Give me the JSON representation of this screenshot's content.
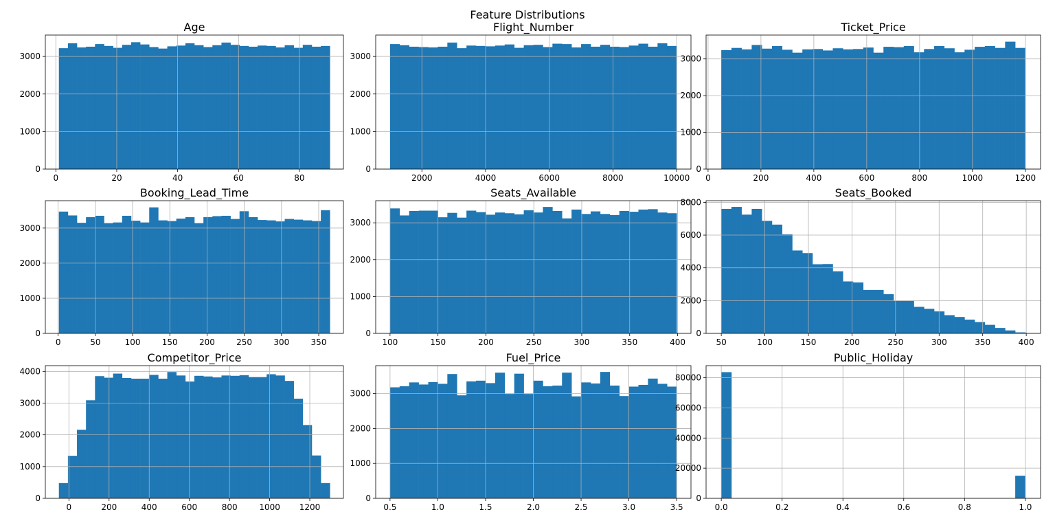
{
  "figure": {
    "title": "Feature Distributions"
  },
  "colors": {
    "bar": "#1f77b4",
    "grid": "#b0b0b0",
    "axis": "#000000"
  },
  "chart_data": [
    {
      "type": "bar",
      "title": "Age",
      "grid": true,
      "bin_range": [
        1,
        90
      ],
      "xlim": [
        -3.45,
        94.45
      ],
      "ylim": [
        0,
        3570
      ],
      "xticks": [
        0,
        20,
        40,
        60,
        80
      ],
      "xtick_labels": [
        "0",
        "20",
        "40",
        "60",
        "80"
      ],
      "yticks": [
        0,
        1000,
        2000,
        3000
      ],
      "ytick_labels": [
        "0",
        "1000",
        "2000",
        "3000"
      ],
      "values": [
        3220,
        3350,
        3240,
        3260,
        3330,
        3280,
        3230,
        3310,
        3380,
        3320,
        3250,
        3210,
        3270,
        3290,
        3350,
        3300,
        3250,
        3300,
        3370,
        3310,
        3280,
        3260,
        3290,
        3280,
        3240,
        3300,
        3230,
        3310,
        3260,
        3280
      ]
    },
    {
      "type": "bar",
      "title": "Flight_Number",
      "grid": true,
      "bin_range": [
        1000,
        9999
      ],
      "xlim": [
        550,
        10449
      ],
      "ylim": [
        0,
        3570
      ],
      "xticks": [
        2000,
        4000,
        6000,
        8000,
        10000
      ],
      "xtick_labels": [
        "2000",
        "4000",
        "6000",
        "8000",
        "10000"
      ],
      "yticks": [
        0,
        1000,
        2000,
        3000
      ],
      "ytick_labels": [
        "0",
        "1000",
        "2000",
        "3000"
      ],
      "values": [
        3330,
        3300,
        3260,
        3250,
        3240,
        3260,
        3370,
        3220,
        3290,
        3280,
        3270,
        3290,
        3320,
        3230,
        3300,
        3310,
        3250,
        3340,
        3330,
        3240,
        3330,
        3260,
        3310,
        3260,
        3250,
        3290,
        3340,
        3260,
        3350,
        3280
      ]
    },
    {
      "type": "bar",
      "title": "Ticket_Price",
      "grid": true,
      "bin_range": [
        50,
        1200
      ],
      "xlim": [
        -7.5,
        1257.5
      ],
      "ylim": [
        0,
        3650
      ],
      "xticks": [
        0,
        200,
        400,
        600,
        800,
        1000,
        1200
      ],
      "xtick_labels": [
        "0",
        "200",
        "400",
        "600",
        "800",
        "1000",
        "1200"
      ],
      "yticks": [
        0,
        1000,
        2000,
        3000
      ],
      "ytick_labels": [
        "0",
        "1000",
        "2000",
        "3000"
      ],
      "values": [
        3240,
        3300,
        3260,
        3380,
        3280,
        3350,
        3250,
        3170,
        3260,
        3270,
        3230,
        3290,
        3260,
        3270,
        3310,
        3170,
        3330,
        3320,
        3350,
        3180,
        3270,
        3350,
        3290,
        3180,
        3250,
        3330,
        3350,
        3300,
        3470,
        3300
      ]
    },
    {
      "type": "bar",
      "title": "Booking_Lead_Time",
      "grid": true,
      "bin_range": [
        1,
        365
      ],
      "xlim": [
        -17.2,
        383.2
      ],
      "ylim": [
        0,
        3780
      ],
      "xticks": [
        0,
        50,
        100,
        150,
        200,
        250,
        300,
        350
      ],
      "xtick_labels": [
        "0",
        "50",
        "100",
        "150",
        "200",
        "250",
        "300",
        "350"
      ],
      "yticks": [
        0,
        1000,
        2000,
        3000
      ],
      "ytick_labels": [
        "0",
        "1000",
        "2000",
        "3000"
      ],
      "values": [
        3470,
        3360,
        3150,
        3310,
        3350,
        3140,
        3160,
        3350,
        3210,
        3160,
        3590,
        3220,
        3200,
        3270,
        3310,
        3140,
        3310,
        3340,
        3350,
        3260,
        3480,
        3310,
        3230,
        3220,
        3190,
        3260,
        3240,
        3220,
        3200,
        3510
      ]
    },
    {
      "type": "bar",
      "title": "Seats_Available",
      "grid": true,
      "bin_range": [
        100,
        399
      ],
      "xlim": [
        85.05,
        413.95
      ],
      "ylim": [
        0,
        3600
      ],
      "xticks": [
        100,
        150,
        200,
        250,
        300,
        350,
        400
      ],
      "xtick_labels": [
        "100",
        "150",
        "200",
        "250",
        "300",
        "350",
        "400"
      ],
      "yticks": [
        0,
        1000,
        2000,
        3000
      ],
      "ytick_labels": [
        "0",
        "1000",
        "2000",
        "3000"
      ],
      "values": [
        3390,
        3200,
        3320,
        3330,
        3330,
        3150,
        3270,
        3140,
        3330,
        3290,
        3220,
        3280,
        3260,
        3230,
        3340,
        3280,
        3430,
        3320,
        3120,
        3360,
        3240,
        3310,
        3240,
        3210,
        3320,
        3300,
        3360,
        3370,
        3280,
        3260
      ]
    },
    {
      "type": "bar",
      "title": "Seats_Booked",
      "grid": true,
      "bin_range": [
        50,
        399
      ],
      "xlim": [
        32.55,
        416.45
      ],
      "ylim": [
        0,
        8100
      ],
      "xticks": [
        50,
        100,
        150,
        200,
        250,
        300,
        350,
        400
      ],
      "xtick_labels": [
        "50",
        "100",
        "150",
        "200",
        "250",
        "300",
        "350",
        "400"
      ],
      "yticks": [
        0,
        2000,
        4000,
        6000,
        8000
      ],
      "ytick_labels": [
        "0",
        "2000",
        "4000",
        "6000",
        "8000"
      ],
      "values": [
        7600,
        7720,
        7250,
        7600,
        6870,
        6640,
        6050,
        5060,
        4900,
        4220,
        4230,
        3790,
        3170,
        3110,
        2650,
        2650,
        2390,
        1980,
        1980,
        1620,
        1500,
        1340,
        1110,
        1000,
        840,
        690,
        520,
        330,
        180,
        60
      ]
    },
    {
      "type": "bar",
      "title": "Competitor_Price",
      "grid": true,
      "bin_range": [
        -50,
        1300
      ],
      "xlim": [
        -117.5,
        1367.5
      ],
      "ylim": [
        0,
        4180
      ],
      "xticks": [
        0,
        200,
        400,
        600,
        800,
        1000,
        1200
      ],
      "xtick_labels": [
        "0",
        "200",
        "400",
        "600",
        "800",
        "1000",
        "1200"
      ],
      "yticks": [
        0,
        1000,
        2000,
        3000,
        4000
      ],
      "ytick_labels": [
        "0",
        "1000",
        "2000",
        "3000",
        "4000"
      ],
      "values": [
        480,
        1340,
        2160,
        3090,
        3850,
        3800,
        3930,
        3790,
        3770,
        3770,
        3890,
        3770,
        3980,
        3870,
        3680,
        3860,
        3840,
        3810,
        3870,
        3860,
        3880,
        3820,
        3820,
        3910,
        3870,
        3700,
        3140,
        2310,
        1350,
        480
      ]
    },
    {
      "type": "bar",
      "title": "Fuel_Price",
      "grid": true,
      "bin_range": [
        0.5,
        3.5
      ],
      "xlim": [
        0.35,
        3.65
      ],
      "ylim": [
        0,
        3800
      ],
      "xticks": [
        0.5,
        1.0,
        1.5,
        2.0,
        2.5,
        3.0,
        3.5
      ],
      "xtick_labels": [
        "0.5",
        "1.0",
        "1.5",
        "2.0",
        "2.5",
        "3.0",
        "3.5"
      ],
      "yticks": [
        0,
        1000,
        2000,
        3000
      ],
      "ytick_labels": [
        "0",
        "1000",
        "2000",
        "3000"
      ],
      "values": [
        3180,
        3210,
        3320,
        3260,
        3330,
        3280,
        3560,
        2950,
        3350,
        3370,
        3300,
        3600,
        2990,
        3570,
        2990,
        3370,
        3210,
        3230,
        3600,
        2920,
        3320,
        3290,
        3620,
        3230,
        2930,
        3200,
        3250,
        3430,
        3280,
        3200
      ]
    },
    {
      "type": "bar",
      "title": "Public_Holiday",
      "grid": true,
      "bin_range": [
        0,
        1
      ],
      "xlim": [
        -0.05,
        1.05
      ],
      "ylim": [
        0,
        88000
      ],
      "xticks": [
        0.0,
        0.2,
        0.4,
        0.6,
        0.8,
        1.0
      ],
      "xtick_labels": [
        "0.0",
        "0.2",
        "0.4",
        "0.6",
        "0.8",
        "1.0"
      ],
      "yticks": [
        0,
        20000,
        40000,
        60000,
        80000
      ],
      "ytick_labels": [
        "0",
        "20000",
        "40000",
        "60000",
        "80000"
      ],
      "values": [
        83700,
        0,
        0,
        0,
        0,
        0,
        0,
        0,
        0,
        0,
        0,
        0,
        0,
        0,
        0,
        0,
        0,
        0,
        0,
        0,
        0,
        0,
        0,
        0,
        0,
        0,
        0,
        0,
        0,
        15000
      ]
    }
  ]
}
